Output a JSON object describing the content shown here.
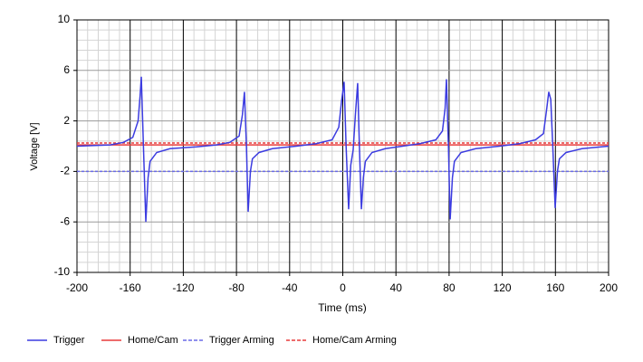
{
  "chart_data": {
    "type": "line",
    "xlabel": "Time (ms)",
    "ylabel": "Voltage [V]",
    "xlim": [
      -200,
      200
    ],
    "xticks": [
      -200,
      -160,
      -120,
      -80,
      -40,
      0,
      40,
      80,
      120,
      160,
      200
    ],
    "ylim": [
      -10,
      10
    ],
    "yticks": [
      -10,
      -6,
      -2,
      2,
      6,
      10
    ],
    "grid": true,
    "minor_grid": true,
    "legend": "bottom",
    "series": [
      {
        "name": "Trigger",
        "color": "#3c3ce0",
        "style": "solid",
        "x": [
          -200,
          -175,
          -165,
          -158,
          -154,
          -152.5,
          -151.6,
          -150,
          -148.2,
          -146.5,
          -145,
          -140,
          -130,
          -110,
          -95,
          -85,
          -78,
          -75.5,
          -74,
          -72.5,
          -71.2,
          -69.5,
          -68,
          -63,
          -53,
          -35,
          -20,
          -8,
          -3,
          -1,
          1,
          2.5,
          4.4,
          6,
          7.8,
          9.5,
          11.2,
          12.5,
          14,
          15.5,
          17,
          22,
          32,
          45,
          58,
          70,
          75,
          77,
          78,
          79.5,
          80.8,
          82.5,
          84,
          89,
          100,
          118,
          133,
          145,
          151,
          153.5,
          155,
          156.5,
          158,
          159.8,
          161.5,
          163,
          168,
          180,
          200
        ],
        "values": [
          0,
          0.1,
          0.3,
          0.7,
          2,
          4,
          5.5,
          0,
          -6,
          -2.5,
          -1.2,
          -0.5,
          -0.2,
          -0.05,
          0.1,
          0.3,
          0.8,
          2.5,
          4.3,
          0,
          -5.2,
          -2,
          -1,
          -0.5,
          -0.2,
          0,
          0.2,
          0.5,
          1.5,
          3.5,
          5.1,
          0,
          -5,
          -1.5,
          -0.3,
          2.5,
          5,
          0,
          -5,
          -2.5,
          -1.2,
          -0.5,
          -0.2,
          0,
          0.2,
          0.5,
          1.2,
          3,
          5.3,
          0,
          -5.8,
          -2.5,
          -1.2,
          -0.5,
          -0.2,
          0,
          0.2,
          0.5,
          1,
          3,
          4.3,
          3.7,
          0,
          -4.9,
          -2,
          -1,
          -0.5,
          -0.2,
          0
        ]
      },
      {
        "name": "Home/Cam",
        "color": "#e83c3c",
        "style": "solid",
        "x": [
          -200,
          200
        ],
        "values": [
          0.1,
          0.1
        ]
      },
      {
        "name": "Trigger Arming",
        "color": "#6a6ae8",
        "style": "dashed",
        "x": [
          -200,
          200
        ],
        "values": [
          -2,
          -2
        ]
      },
      {
        "name": "Home/Cam Arming",
        "color": "#e83c3c",
        "style": "dashed",
        "x": [
          -200,
          200
        ],
        "values": [
          0.25,
          0.25
        ]
      }
    ]
  }
}
